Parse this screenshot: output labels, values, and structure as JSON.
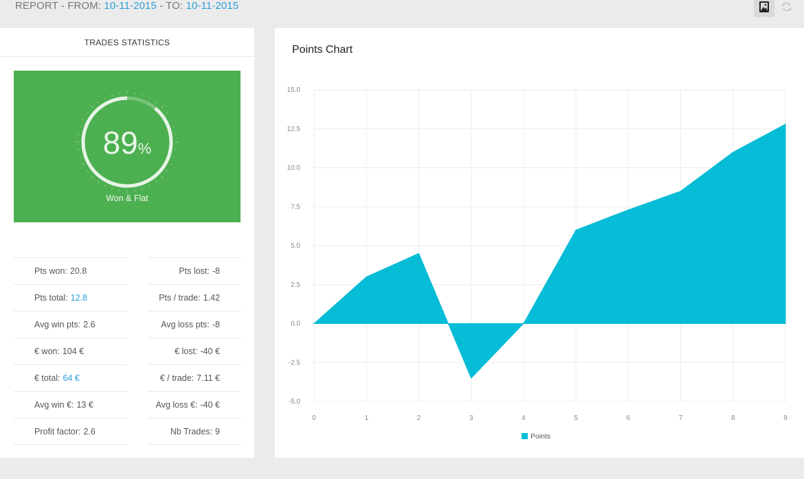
{
  "header": {
    "prefix": "REPORT - FROM: ",
    "from_date": "10-11-2015",
    "mid": " - TO: ",
    "to_date": "10-11-2015"
  },
  "icons": [
    "image-icon",
    "refresh-icon"
  ],
  "stats_panel": {
    "title": "TRADES STATISTICS",
    "gauge": {
      "value": 89,
      "display": "89",
      "unit": "%",
      "caption": "Won & Flat",
      "color": "#4caf50"
    },
    "left_rows": [
      {
        "label": "Pts won:",
        "value": "20.8",
        "highlight": false
      },
      {
        "label": "Pts total:",
        "value": "12.8",
        "highlight": true
      },
      {
        "label": "Avg win pts:",
        "value": "2.6",
        "highlight": false
      },
      {
        "label": "€ won:",
        "value": "104 €",
        "highlight": false
      },
      {
        "label": "€ total:",
        "value": "64 €",
        "highlight": true
      },
      {
        "label": "Avg win €:",
        "value": "13 €",
        "highlight": false
      },
      {
        "label": "Profit factor:",
        "value": "2.6",
        "highlight": false
      }
    ],
    "right_rows": [
      {
        "label": "Pts lost:",
        "value": "-8"
      },
      {
        "label": "Pts / trade:",
        "value": "1.42"
      },
      {
        "label": "Avg loss pts:",
        "value": "-8"
      },
      {
        "label": "€ lost:",
        "value": "-40 €"
      },
      {
        "label": "€ / trade:",
        "value": "7.11 €"
      },
      {
        "label": "Avg loss €:",
        "value": "-40 €"
      },
      {
        "label": "Nb Trades:",
        "value": "9"
      }
    ]
  },
  "chart_data": {
    "type": "area",
    "title": "Points Chart",
    "x": [
      0,
      1,
      2,
      3,
      4,
      5,
      6,
      7,
      8,
      9
    ],
    "series": [
      {
        "name": "Points",
        "values": [
          0,
          3,
          4.5,
          -3.5,
          0,
          6,
          7.3,
          8.5,
          11,
          12.8
        ],
        "color": "#06bcd6"
      }
    ],
    "ylim": [
      -5,
      15
    ],
    "yticks": [
      "15.0",
      "12.5",
      "10.0",
      "7.5",
      "5.0",
      "2.5",
      "0.0",
      "-2.5",
      "-5.0"
    ],
    "xticks": [
      "0",
      "1",
      "2",
      "3",
      "4",
      "5",
      "6",
      "7",
      "8",
      "9"
    ],
    "grid": true,
    "legend": "bottom-center"
  }
}
